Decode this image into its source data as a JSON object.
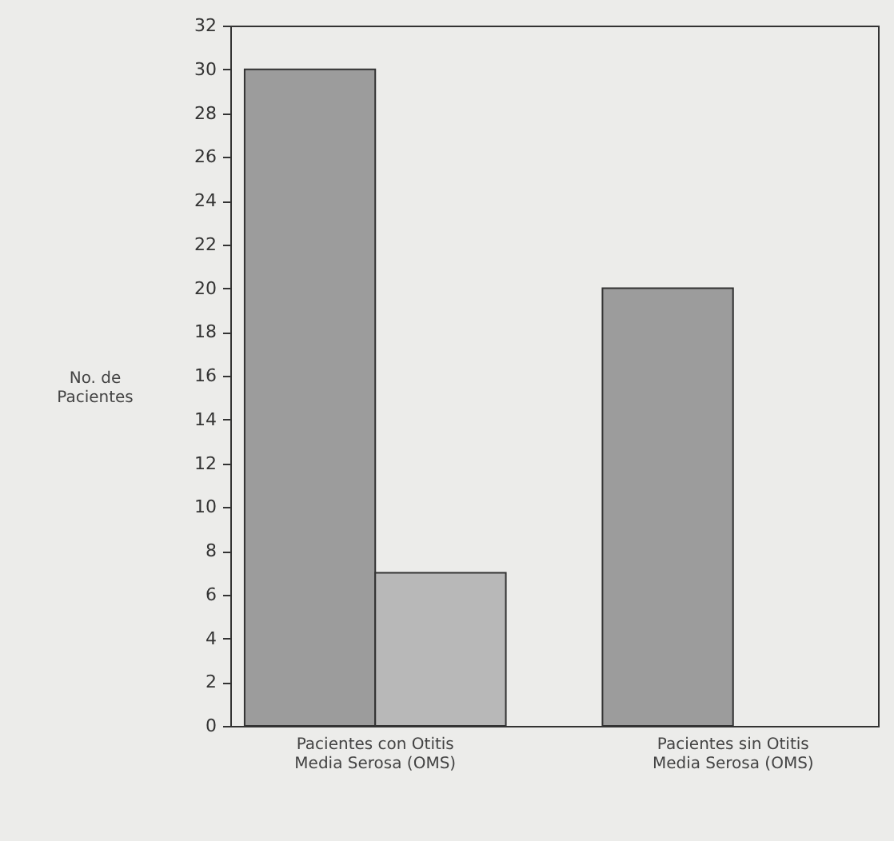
{
  "chart_data": {
    "type": "bar",
    "categories": [
      "Pacientes con Otitis Media Serosa (OMS)",
      "Pacientes sin Otitis Media Serosa (OMS)"
    ],
    "series": [
      {
        "color": "#9c9c9c",
        "values": [
          30,
          20
        ]
      },
      {
        "color": "#b8b8b8",
        "values": [
          7,
          null
        ]
      }
    ],
    "ylabel": "No. de Pacientes",
    "ylim": [
      0,
      32
    ],
    "yticks": [
      0,
      2,
      4,
      6,
      8,
      10,
      12,
      14,
      16,
      18,
      20,
      22,
      24,
      26,
      28,
      30,
      32
    ],
    "grid": false,
    "legend": false
  }
}
